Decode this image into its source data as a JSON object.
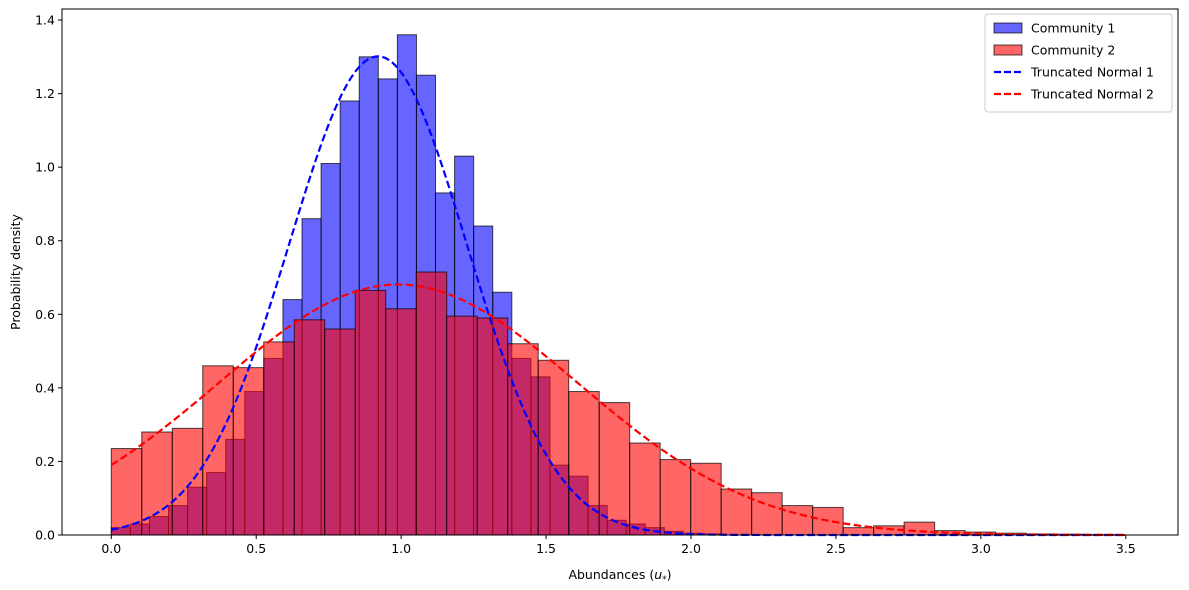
{
  "chart_data": {
    "type": "bar",
    "xlabel": "Abundances (",
    "xlabel_symbol": "u",
    "xlabel_sub": "*",
    "xlabel_close": ")",
    "ylabel": "Probability density",
    "xlim": [
      -0.17,
      3.68
    ],
    "ylim": [
      0,
      1.43
    ],
    "xticks": [
      0.0,
      0.5,
      1.0,
      1.5,
      2.0,
      2.5,
      3.0,
      3.5
    ],
    "xtick_labels": [
      "0.0",
      "0.5",
      "1.0",
      "1.5",
      "2.0",
      "2.5",
      "3.0",
      "3.5"
    ],
    "yticks": [
      0.0,
      0.2,
      0.4,
      0.6,
      0.8,
      1.0,
      1.2,
      1.4
    ],
    "ytick_labels": [
      "0.0",
      "0.2",
      "0.4",
      "0.6",
      "0.8",
      "1.0",
      "1.2",
      "1.4"
    ],
    "grid": false,
    "legend_position": "top-right",
    "series": [
      {
        "name": "Community 1",
        "kind": "histogram",
        "color": "#0000ff",
        "alpha": 0.6,
        "bin_start": 0.0,
        "bin_width": 0.0658,
        "values": [
          0.02,
          0.03,
          0.05,
          0.08,
          0.13,
          0.17,
          0.26,
          0.39,
          0.48,
          0.64,
          0.86,
          1.01,
          1.18,
          1.3,
          1.24,
          1.36,
          1.25,
          0.93,
          1.03,
          0.84,
          0.66,
          0.48,
          0.43,
          0.19,
          0.16,
          0.08,
          0.04,
          0.03,
          0.02,
          0.01,
          0.005,
          0.003
        ]
      },
      {
        "name": "Community 2",
        "kind": "histogram",
        "color": "#ff0000",
        "alpha": 0.6,
        "bin_start": 0.0,
        "bin_width": 0.1052,
        "values": [
          0.235,
          0.28,
          0.29,
          0.46,
          0.455,
          0.525,
          0.585,
          0.56,
          0.665,
          0.615,
          0.715,
          0.595,
          0.59,
          0.52,
          0.475,
          0.39,
          0.36,
          0.25,
          0.205,
          0.195,
          0.125,
          0.115,
          0.08,
          0.075,
          0.02,
          0.025,
          0.035,
          0.012,
          0.008,
          0.005,
          0.003,
          0.002,
          0.001
        ]
      },
      {
        "name": "Truncated Normal 1",
        "kind": "line",
        "color": "#0000ff",
        "dash": "dashed",
        "mu": 0.92,
        "sigma": 0.307,
        "lower": 0.0,
        "x_range": [
          0.0,
          3.5
        ]
      },
      {
        "name": "Truncated Normal 2",
        "kind": "line",
        "color": "#ff0000",
        "dash": "dashed",
        "mu": 0.99,
        "sigma": 0.62,
        "lower": 0.0,
        "x_range": [
          0.0,
          3.5
        ]
      }
    ]
  }
}
